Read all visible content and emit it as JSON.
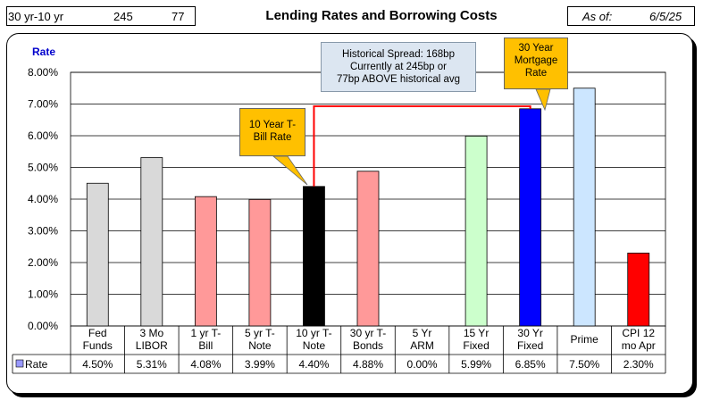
{
  "header": {
    "spread_label": "30 yr-10 yr",
    "spread_bp": "245",
    "above_bp": "77",
    "title": "Lending Rates and Borrowing Costs",
    "as_of_label": "As of:",
    "as_of_date": "6/5/25"
  },
  "chart_data": {
    "type": "bar",
    "ylabel": "Rate",
    "ylim": [
      0,
      8
    ],
    "yticks": [
      "0.00%",
      "1.00%",
      "2.00%",
      "3.00%",
      "4.00%",
      "5.00%",
      "6.00%",
      "7.00%",
      "8.00%"
    ],
    "grid": true,
    "categories": [
      [
        "Fed",
        "Funds"
      ],
      [
        "3 Mo",
        "LIBOR"
      ],
      [
        "1 yr  T-",
        "Bill"
      ],
      [
        "5 yr T-",
        "Note"
      ],
      [
        "10 yr T-",
        "Note"
      ],
      [
        "30 yr T-",
        "Bonds"
      ],
      [
        "5 Yr",
        "ARM"
      ],
      [
        "15 Yr",
        "Fixed"
      ],
      [
        "30 Yr",
        "Fixed"
      ],
      [
        "Prime"
      ],
      [
        "CPI 12",
        "mo Apr"
      ]
    ],
    "series": [
      {
        "name": "Rate",
        "values": [
          4.5,
          5.31,
          4.08,
          3.99,
          4.4,
          4.88,
          0.0,
          5.99,
          6.85,
          7.5,
          2.3
        ],
        "labels": [
          "4.50%",
          "5.31%",
          "4.08%",
          "3.99%",
          "4.40%",
          "4.88%",
          "0.00%",
          "5.99%",
          "6.85%",
          "7.50%",
          "2.30%"
        ],
        "colors": [
          "#d9d9d9",
          "#d9d9d9",
          "#ff9999",
          "#ff9999",
          "#000000",
          "#ff9999",
          "#ff9999",
          "#ccffcc",
          "#0000ff",
          "#cce6ff",
          "#ff0000"
        ]
      }
    ],
    "spread_line_color": "#ff0000",
    "annotations": {
      "ten_year": [
        "10 Year T-",
        "Bill Rate"
      ],
      "thirty_year": [
        "30 Year",
        "Mortgage",
        "Rate"
      ],
      "spread": [
        "Historical Spread: 168bp",
        "Currently at 245bp  or",
        "77bp ABOVE historical avg"
      ]
    }
  }
}
